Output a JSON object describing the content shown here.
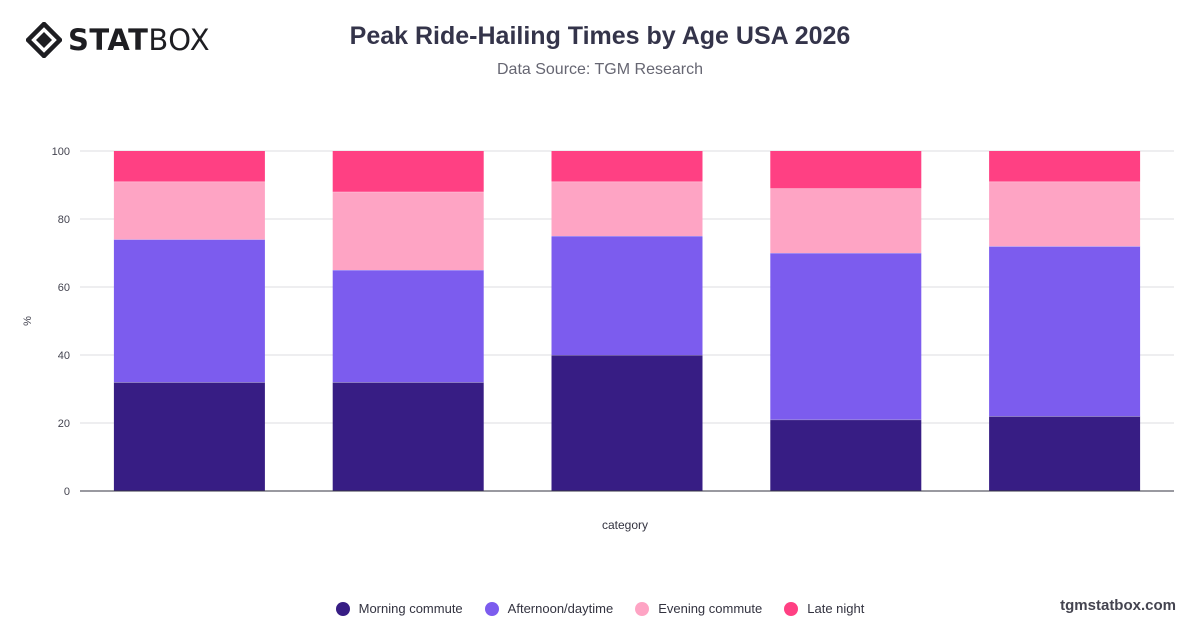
{
  "brand": {
    "logo_bold": "STAT",
    "logo_light": "BOX",
    "site": "tgmstatbox.com"
  },
  "chart_data": {
    "type": "bar",
    "stacked": true,
    "title": "Peak Ride-Hailing Times by Age USA 2026",
    "subtitle": "Data Source: TGM Research",
    "xlabel": "category",
    "ylabel": "%",
    "ylim": [
      0,
      100
    ],
    "yticks": [
      0,
      20,
      40,
      60,
      80,
      100
    ],
    "grid": true,
    "legend_position": "bottom",
    "categories": [
      "",
      "",
      "",
      "",
      ""
    ],
    "series": [
      {
        "name": "Morning commute",
        "color": "#371d84",
        "values": [
          32,
          32,
          40,
          21,
          22
        ]
      },
      {
        "name": "Afternoon/daytime",
        "color": "#7c5cee",
        "values": [
          42,
          33,
          35,
          49,
          50
        ]
      },
      {
        "name": "Evening commute",
        "color": "#fea4c4",
        "values": [
          17,
          23,
          16,
          19,
          19
        ]
      },
      {
        "name": "Late night",
        "color": "#ff4083",
        "values": [
          9,
          12,
          9,
          11,
          9
        ]
      }
    ]
  }
}
